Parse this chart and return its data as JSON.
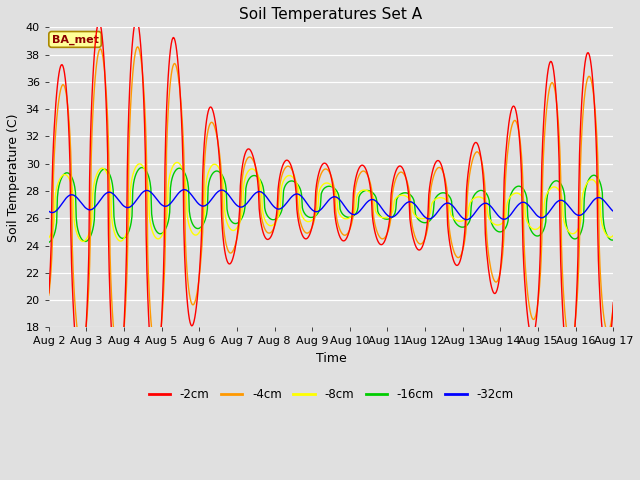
{
  "title": "Soil Temperatures Set A",
  "xlabel": "Time",
  "ylabel": "Soil Temperature (C)",
  "ylim": [
    18,
    40
  ],
  "yticks": [
    18,
    20,
    22,
    24,
    26,
    28,
    30,
    32,
    34,
    36,
    38,
    40
  ],
  "xtick_labels": [
    "Aug 2",
    "Aug 3",
    "Aug 4",
    "Aug 5",
    "Aug 6",
    "Aug 7",
    "Aug 8",
    "Aug 9",
    "Aug 10",
    "Aug 11",
    "Aug 12",
    "Aug 13",
    "Aug 14",
    "Aug 15",
    "Aug 16",
    "Aug 17"
  ],
  "series_colors": {
    "-2cm": "#ff0000",
    "-4cm": "#ff9900",
    "-8cm": "#ffff00",
    "-16cm": "#00cc00",
    "-32cm": "#0000ff"
  },
  "legend_label": "BA_met",
  "bg_color": "#e0e0e0",
  "title_fontsize": 11,
  "axis_fontsize": 9,
  "tick_fontsize": 8
}
